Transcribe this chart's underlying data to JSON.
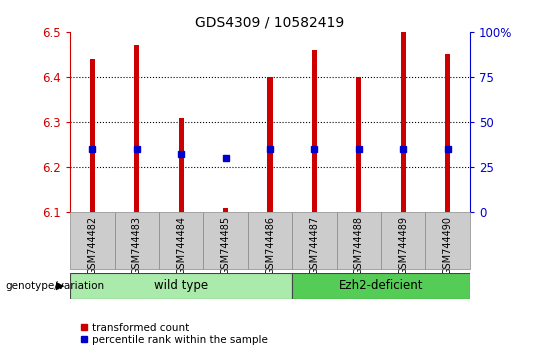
{
  "title": "GDS4309 / 10582419",
  "samples": [
    "GSM744482",
    "GSM744483",
    "GSM744484",
    "GSM744485",
    "GSM744486",
    "GSM744487",
    "GSM744488",
    "GSM744489",
    "GSM744490"
  ],
  "red_values": [
    6.44,
    6.47,
    6.31,
    6.11,
    6.4,
    6.46,
    6.4,
    6.5,
    6.45
  ],
  "blue_values": [
    6.24,
    6.24,
    6.23,
    6.22,
    6.24,
    6.24,
    6.24,
    6.24,
    6.24
  ],
  "ylim": [
    6.1,
    6.5
  ],
  "yticks": [
    6.1,
    6.2,
    6.3,
    6.4,
    6.5
  ],
  "right_yticks": [
    0,
    25,
    50,
    75,
    100
  ],
  "groups": [
    {
      "label": "wild type",
      "start": 0,
      "end": 5,
      "color": "#90EE90"
    },
    {
      "label": "Ezh2-deficient",
      "start": 5,
      "end": 9,
      "color": "#66DD66"
    }
  ],
  "group_label": "genotype/variation",
  "legend_red": "transformed count",
  "legend_blue": "percentile rank within the sample",
  "red_color": "#CC0000",
  "blue_color": "#0000CC",
  "bar_width": 0.12,
  "wt_color": "#AAEAAA",
  "ez_color": "#55CC55"
}
